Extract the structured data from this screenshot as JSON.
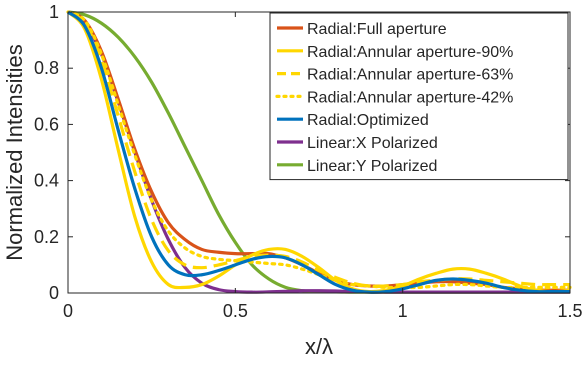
{
  "chart_data": {
    "type": "line",
    "title": "",
    "xlabel": "x/λ",
    "ylabel": "Normalized Intensities",
    "xlim": [
      0,
      1.5
    ],
    "ylim": [
      0,
      1
    ],
    "xticks": [
      0,
      0.5,
      1,
      1.5
    ],
    "xtick_labels": [
      "0",
      "0.5",
      "1",
      "1.5"
    ],
    "yticks": [
      0,
      0.2,
      0.4,
      0.6,
      0.8,
      1
    ],
    "ytick_labels": [
      "0",
      "0.2",
      "0.4",
      "0.6",
      "0.8",
      "1"
    ],
    "grid": false,
    "legend_position": "top-right",
    "series": [
      {
        "name": "Radial:Full aperture",
        "color": "#D95319",
        "line_style": "solid",
        "x": [
          0,
          0.05,
          0.1,
          0.15,
          0.2,
          0.25,
          0.3,
          0.35,
          0.4,
          0.45,
          0.5,
          0.55,
          0.6,
          0.65,
          0.7,
          0.75,
          0.8,
          0.85,
          0.9,
          0.95,
          1.0,
          1.05,
          1.1,
          1.15,
          1.2,
          1.25,
          1.3,
          1.35,
          1.4,
          1.45,
          1.5
        ],
        "y": [
          1,
          0.97,
          0.86,
          0.69,
          0.51,
          0.36,
          0.25,
          0.19,
          0.155,
          0.145,
          0.14,
          0.14,
          0.14,
          0.125,
          0.1,
          0.07,
          0.045,
          0.03,
          0.025,
          0.025,
          0.03,
          0.035,
          0.04,
          0.04,
          0.035,
          0.03,
          0.02,
          0.015,
          0.01,
          0.01,
          0.01
        ]
      },
      {
        "name": "Radial:Annular aperture-90%",
        "color": "#FFD700",
        "line_style": "solid",
        "x": [
          0,
          0.05,
          0.1,
          0.15,
          0.2,
          0.25,
          0.3,
          0.35,
          0.4,
          0.45,
          0.5,
          0.55,
          0.6,
          0.65,
          0.7,
          0.75,
          0.8,
          0.85,
          0.9,
          0.95,
          1.0,
          1.05,
          1.1,
          1.15,
          1.2,
          1.25,
          1.3,
          1.35,
          1.4,
          1.45,
          1.5
        ],
        "y": [
          1,
          0.94,
          0.76,
          0.51,
          0.27,
          0.11,
          0.03,
          0.02,
          0.03,
          0.06,
          0.1,
          0.135,
          0.155,
          0.155,
          0.13,
          0.09,
          0.045,
          0.015,
          0.005,
          0.01,
          0.025,
          0.05,
          0.07,
          0.085,
          0.085,
          0.07,
          0.05,
          0.025,
          0.01,
          0.005,
          0.01
        ]
      },
      {
        "name": "Radial:Annular aperture-63%",
        "color": "#FFD700",
        "line_style": "dashed",
        "x": [
          0,
          0.05,
          0.1,
          0.15,
          0.2,
          0.25,
          0.3,
          0.35,
          0.4,
          0.45,
          0.5,
          0.55,
          0.6,
          0.65,
          0.7,
          0.75,
          0.8,
          0.85,
          0.9,
          0.95,
          1.0,
          1.05,
          1.1,
          1.15,
          1.2,
          1.25,
          1.3,
          1.35,
          1.4,
          1.45,
          1.5
        ],
        "y": [
          1,
          0.96,
          0.83,
          0.63,
          0.43,
          0.26,
          0.15,
          0.1,
          0.09,
          0.1,
          0.115,
          0.13,
          0.135,
          0.13,
          0.11,
          0.08,
          0.055,
          0.035,
          0.025,
          0.025,
          0.03,
          0.04,
          0.045,
          0.05,
          0.05,
          0.045,
          0.04,
          0.035,
          0.03,
          0.03,
          0.03
        ]
      },
      {
        "name": "Radial:Annular aperture-42%",
        "color": "#FFD700",
        "line_style": "dotted",
        "x": [
          0,
          0.05,
          0.1,
          0.15,
          0.2,
          0.25,
          0.3,
          0.35,
          0.4,
          0.45,
          0.5,
          0.55,
          0.6,
          0.65,
          0.7,
          0.75,
          0.8,
          0.85,
          0.9,
          0.95,
          1.0,
          1.05,
          1.1,
          1.15,
          1.2,
          1.25,
          1.3,
          1.35,
          1.4,
          1.45,
          1.5
        ],
        "y": [
          1,
          0.97,
          0.85,
          0.67,
          0.49,
          0.33,
          0.22,
          0.16,
          0.13,
          0.12,
          0.115,
          0.11,
          0.105,
          0.1,
          0.085,
          0.065,
          0.045,
          0.03,
          0.025,
          0.02,
          0.02,
          0.02,
          0.025,
          0.03,
          0.03,
          0.025,
          0.02,
          0.02,
          0.02,
          0.02,
          0.02
        ]
      },
      {
        "name": "Radial:Optimized",
        "color": "#0072BD",
        "line_style": "solid",
        "x": [
          0,
          0.05,
          0.1,
          0.15,
          0.2,
          0.25,
          0.3,
          0.35,
          0.4,
          0.45,
          0.5,
          0.55,
          0.6,
          0.65,
          0.7,
          0.75,
          0.8,
          0.85,
          0.9,
          0.95,
          1.0,
          1.05,
          1.1,
          1.15,
          1.2,
          1.25,
          1.3,
          1.35,
          1.4,
          1.45,
          1.5
        ],
        "y": [
          1,
          0.95,
          0.8,
          0.58,
          0.37,
          0.2,
          0.1,
          0.065,
          0.065,
          0.08,
          0.1,
          0.12,
          0.13,
          0.125,
          0.1,
          0.065,
          0.03,
          0.01,
          0.003,
          0.005,
          0.015,
          0.03,
          0.045,
          0.05,
          0.045,
          0.035,
          0.02,
          0.01,
          0.005,
          0.005,
          0.005
        ]
      },
      {
        "name": "Linear:X Polarized",
        "color": "#7E2F8E",
        "line_style": "solid",
        "x": [
          0,
          0.05,
          0.1,
          0.15,
          0.2,
          0.25,
          0.3,
          0.35,
          0.4,
          0.45,
          0.5,
          0.55,
          0.6,
          0.65,
          0.7,
          0.75,
          0.8,
          0.85,
          0.9,
          0.95,
          1.0,
          1.05,
          1.1,
          1.15,
          1.2,
          1.25,
          1.3,
          1.35,
          1.4,
          1.45,
          1.5
        ],
        "y": [
          1,
          0.96,
          0.85,
          0.68,
          0.5,
          0.33,
          0.19,
          0.09,
          0.035,
          0.012,
          0.005,
          0.003,
          0.004,
          0.006,
          0.008,
          0.008,
          0.007,
          0.005,
          0.004,
          0.003,
          0.003,
          0.003,
          0.003,
          0.003,
          0.003,
          0.003,
          0.003,
          0.003,
          0.003,
          0.003,
          0.003
        ]
      },
      {
        "name": "Linear:Y Polarized",
        "color": "#77AC30",
        "line_style": "solid",
        "x": [
          0,
          0.05,
          0.1,
          0.15,
          0.2,
          0.25,
          0.3,
          0.35,
          0.4,
          0.45,
          0.5,
          0.55,
          0.6,
          0.65,
          0.7,
          0.75,
          0.8,
          0.85,
          0.9,
          0.95,
          1.0,
          1.05,
          1.1,
          1.15,
          1.2,
          1.25,
          1.3,
          1.35,
          1.4,
          1.45,
          1.5
        ],
        "y": [
          1,
          0.99,
          0.96,
          0.91,
          0.84,
          0.75,
          0.64,
          0.52,
          0.4,
          0.28,
          0.18,
          0.1,
          0.05,
          0.02,
          0.008,
          0.004,
          0.004,
          0.003,
          0.003,
          0.003,
          0.003,
          0.003,
          0.003,
          0.003,
          0.003,
          0.003,
          0.003,
          0.003,
          0.003,
          0.003,
          0.003
        ]
      }
    ]
  }
}
